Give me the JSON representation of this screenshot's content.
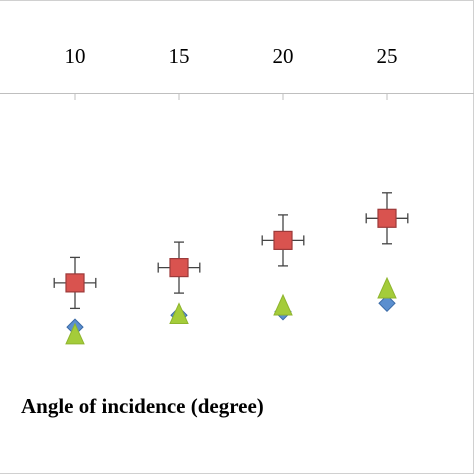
{
  "chart_data": {
    "type": "scatter",
    "xlabel": "Angle of incidence (degree)",
    "ylabel": "",
    "title": "",
    "x_tick_labels": [
      "10",
      "15",
      "20",
      "25"
    ],
    "x": [
      10,
      15,
      20,
      25
    ],
    "x_axis_position": "top",
    "grid": false,
    "legend": "none",
    "series": [
      {
        "marker": "square",
        "color": "#d9534f",
        "edge_color": "#9c3a3a",
        "values": [
          0.43,
          0.52,
          0.68,
          0.81
        ],
        "error_x": 1.0,
        "error_y": 0.15
      },
      {
        "marker": "diamond",
        "color": "#5b8fcf",
        "edge_color": "#3a6aa6",
        "values": [
          0.17,
          0.24,
          0.26,
          0.31
        ]
      },
      {
        "marker": "triangle",
        "color": "#a4cc3a",
        "edge_color": "#8fb52e",
        "values": [
          0.13,
          0.25,
          0.3,
          0.4
        ]
      }
    ]
  }
}
